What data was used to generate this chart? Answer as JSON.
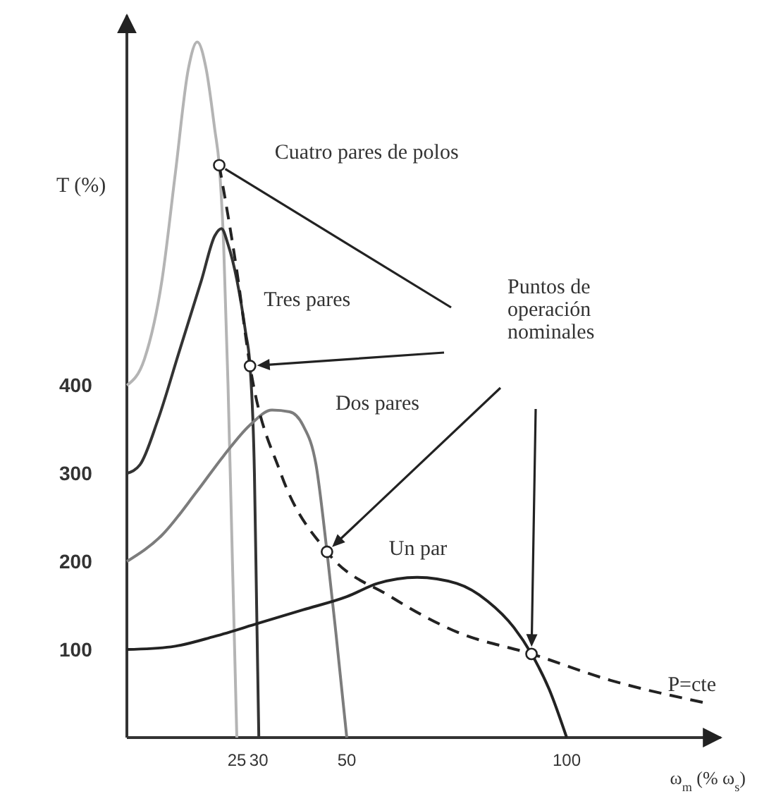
{
  "chart_data": {
    "type": "line",
    "xlabel": "ω$_{m}$ (% ω$_{s}$)",
    "ylabel": "T (%)",
    "xlim": [
      0,
      135
    ],
    "ylim": [
      0,
      820
    ],
    "xticks": [
      25,
      30,
      50,
      100
    ],
    "yticks": [
      100,
      200,
      300,
      400
    ],
    "marker": "none",
    "series": [
      {
        "name": "Cuatro pares de polos",
        "color": "#b4b4b4",
        "x": [
          0,
          4,
          8,
          11,
          14,
          16,
          18,
          20,
          21,
          22,
          23,
          24,
          25
        ],
        "values": [
          400,
          430,
          520,
          640,
          760,
          790,
          760,
          690,
          650,
          560,
          400,
          200,
          0
        ]
      },
      {
        "name": "Tres pares",
        "color": "#333333",
        "x": [
          0,
          3,
          7,
          12,
          17,
          20,
          21.5,
          23,
          25,
          27,
          28,
          29,
          29.5,
          30
        ],
        "values": [
          300,
          310,
          360,
          440,
          520,
          570,
          578,
          560,
          520,
          460,
          422,
          300,
          150,
          0
        ]
      },
      {
        "name": "Dos pares",
        "color": "#7c7c7c",
        "x": [
          0,
          8,
          16,
          22,
          28,
          33,
          37,
          40,
          43,
          45.5,
          47.5,
          50
        ],
        "values": [
          200,
          230,
          280,
          320,
          355,
          372,
          370,
          355,
          310,
          211,
          120,
          0
        ]
      },
      {
        "name": "Un par",
        "color": "#222222",
        "x": [
          0,
          10,
          20,
          30,
          40,
          50,
          57,
          66,
          75,
          82,
          88,
          92,
          96,
          100
        ],
        "values": [
          100,
          103,
          115,
          130,
          145,
          160,
          175,
          182,
          175,
          155,
          125,
          95,
          55,
          0
        ]
      },
      {
        "name": "P=cte",
        "color": "#222222",
        "line_style": "dashed",
        "x": [
          21,
          25,
          28,
          35,
          45.5,
          60,
          75,
          92,
          110,
          131
        ],
        "values": [
          650,
          530,
          422,
          300,
          211,
          160,
          120,
          95,
          65,
          40
        ]
      },
      {
        "type": "scatter",
        "color": "#222222",
        "marker": "circle",
        "x": [
          21,
          28,
          45.5,
          92
        ],
        "values": [
          650,
          422,
          211,
          95
        ]
      }
    ],
    "annotations": [
      "Puntos de operación nominales"
    ]
  }
}
